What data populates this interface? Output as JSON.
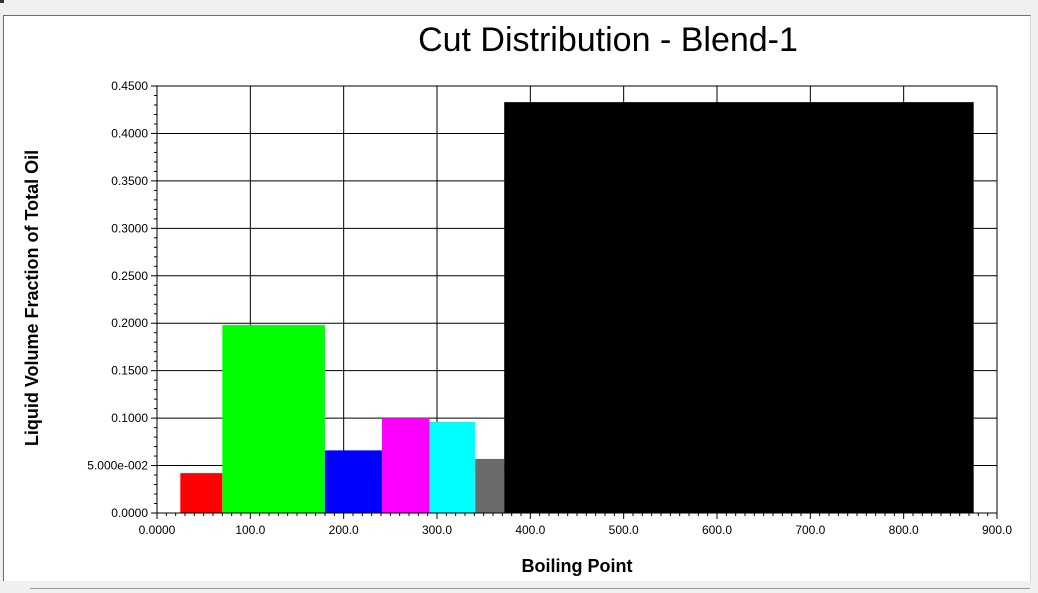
{
  "chart_data": {
    "type": "bar",
    "title": "Cut Distribution - Blend-1",
    "xlabel": "Boiling Point",
    "ylabel": "Liquid Volume Fraction of Total Oil",
    "xlim": [
      0,
      900
    ],
    "ylim": [
      0,
      0.45
    ],
    "grid": true,
    "x_ticks": [
      "0.0000",
      "100.0",
      "200.0",
      "300.0",
      "400.0",
      "500.0",
      "600.0",
      "700.0",
      "800.0",
      "900.0"
    ],
    "y_ticks": [
      "0.0000",
      "5.000e-002",
      "0.1000",
      "0.1500",
      "0.2000",
      "0.2500",
      "0.3000",
      "0.3500",
      "0.4000",
      "0.4500"
    ],
    "bars": [
      {
        "x_start": 25,
        "x_end": 70,
        "value": 0.042,
        "color": "#ff0000"
      },
      {
        "x_start": 70,
        "x_end": 180,
        "value": 0.198,
        "color": "#00ff00"
      },
      {
        "x_start": 180,
        "x_end": 241,
        "value": 0.066,
        "color": "#0000ff"
      },
      {
        "x_start": 241,
        "x_end": 292,
        "value": 0.1,
        "color": "#ff00ff"
      },
      {
        "x_start": 292,
        "x_end": 341,
        "value": 0.096,
        "color": "#00ffff"
      },
      {
        "x_start": 341,
        "x_end": 372,
        "value": 0.057,
        "color": "#6b6b6b"
      },
      {
        "x_start": 372,
        "x_end": 875,
        "value": 0.433,
        "color": "#000000"
      }
    ]
  }
}
